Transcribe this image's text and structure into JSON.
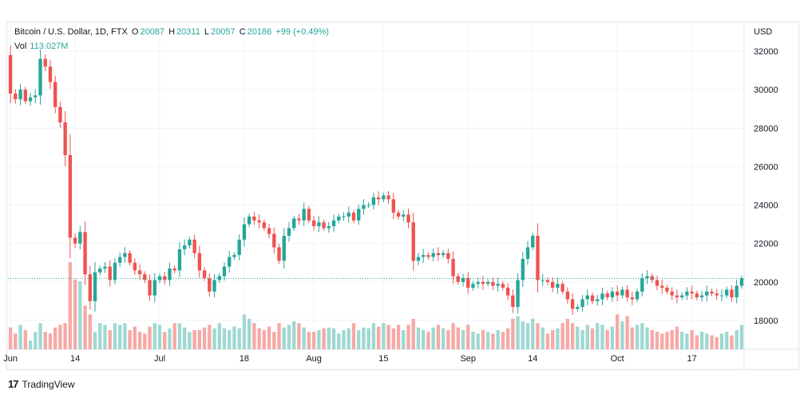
{
  "header": {
    "symbol": "Bitcoin / U.S. Dollar, 1D, FTX",
    "open_label": "O",
    "open": "20087",
    "high_label": "H",
    "high": "20311",
    "low_label": "L",
    "low": "20057",
    "close_label": "C",
    "close": "20186",
    "change": "+99 (+0.49%)",
    "vol_label": "Vol",
    "vol": "113.027M"
  },
  "currency": "USD",
  "brand": {
    "logo": "17",
    "name": "TradingView"
  },
  "colors": {
    "up": "#26a69a",
    "down": "#ef5350",
    "up_vol": "#9fd8d2",
    "down_vol": "#f6a9a6",
    "grid": "#f0f3fa",
    "axis_text": "#131722"
  },
  "chart_data": {
    "type": "candlestick",
    "title": "Bitcoin / U.S. Dollar, 1D, FTX",
    "ylabel": "USD",
    "ylim": [
      16500,
      33500
    ],
    "y_ticks": [
      18000,
      20000,
      22000,
      24000,
      26000,
      28000,
      30000,
      32000
    ],
    "x_ticks": [
      {
        "label": "Jun",
        "index": 0
      },
      {
        "label": "14",
        "index": 13
      },
      {
        "label": "Jul",
        "index": 30
      },
      {
        "label": "18",
        "index": 47
      },
      {
        "label": "Aug",
        "index": 61
      },
      {
        "label": "15",
        "index": 75
      },
      {
        "label": "Sep",
        "index": 92
      },
      {
        "label": "14",
        "index": 105
      },
      {
        "label": "Oct",
        "index": 122
      },
      {
        "label": "17",
        "index": 137
      }
    ],
    "last_price": 20186,
    "close": [
      29800,
      29500,
      30000,
      29400,
      29600,
      29700,
      31600,
      31200,
      30400,
      29100,
      28300,
      26600,
      22300,
      22000,
      22600,
      20400,
      19000,
      20500,
      20700,
      20800,
      20100,
      21000,
      21300,
      21500,
      21000,
      20600,
      20400,
      20100,
      19300,
      20100,
      20300,
      20100,
      20700,
      20600,
      21700,
      21900,
      22200,
      21500,
      20600,
      20200,
      19500,
      20100,
      20300,
      20800,
      21300,
      21400,
      22200,
      23000,
      23400,
      23200,
      23100,
      22800,
      22500,
      21800,
      21100,
      22400,
      22800,
      23300,
      23200,
      23800,
      23200,
      22900,
      23100,
      22800,
      22900,
      23200,
      23400,
      23400,
      23600,
      23200,
      23800,
      24000,
      24000,
      24400,
      24300,
      24500,
      24300,
      23600,
      23400,
      23500,
      23100,
      21100,
      21300,
      21400,
      21300,
      21500,
      21400,
      21500,
      21200,
      20300,
      20000,
      20200,
      19700,
      19900,
      20000,
      19900,
      20000,
      19800,
      19900,
      19700,
      19300,
      18700,
      20100,
      21200,
      21800,
      22400,
      20100,
      20100,
      20000,
      19700,
      19900,
      19500,
      19100,
      18600,
      18700,
      19100,
      19300,
      19000,
      19100,
      19400,
      19200,
      19500,
      19300,
      19600,
      19200,
      19100,
      19500,
      20200,
      20300,
      20100,
      19800,
      19700,
      19500,
      19300,
      19200,
      19300,
      19500,
      19400,
      19200,
      19300,
      19500,
      19400,
      19300,
      19300,
      19600,
      19200,
      19800,
      20186
    ],
    "volume": [
      0.25,
      0.18,
      0.28,
      0.22,
      0.1,
      0.2,
      0.3,
      0.2,
      0.18,
      0.25,
      0.28,
      0.3,
      1.0,
      0.8,
      0.78,
      0.5,
      0.4,
      0.2,
      0.3,
      0.28,
      0.22,
      0.3,
      0.28,
      0.3,
      0.22,
      0.26,
      0.2,
      0.18,
      0.26,
      0.3,
      0.28,
      0.2,
      0.24,
      0.3,
      0.3,
      0.25,
      0.2,
      0.22,
      0.22,
      0.25,
      0.28,
      0.24,
      0.3,
      0.24,
      0.22,
      0.26,
      0.24,
      0.4,
      0.35,
      0.3,
      0.24,
      0.22,
      0.26,
      0.2,
      0.3,
      0.25,
      0.28,
      0.32,
      0.3,
      0.25,
      0.2,
      0.2,
      0.22,
      0.24,
      0.25,
      0.24,
      0.18,
      0.22,
      0.24,
      0.3,
      0.22,
      0.25,
      0.24,
      0.3,
      0.26,
      0.3,
      0.28,
      0.24,
      0.28,
      0.22,
      0.28,
      0.35,
      0.25,
      0.22,
      0.2,
      0.25,
      0.28,
      0.24,
      0.22,
      0.3,
      0.25,
      0.22,
      0.28,
      0.2,
      0.18,
      0.22,
      0.2,
      0.18,
      0.22,
      0.2,
      0.24,
      0.35,
      0.38,
      0.32,
      0.3,
      0.35,
      0.3,
      0.25,
      0.18,
      0.22,
      0.24,
      0.3,
      0.35,
      0.3,
      0.26,
      0.22,
      0.28,
      0.24,
      0.3,
      0.28,
      0.22,
      0.26,
      0.4,
      0.32,
      0.38,
      0.25,
      0.28,
      0.3,
      0.25,
      0.22,
      0.2,
      0.18,
      0.2,
      0.22,
      0.26,
      0.2,
      0.18,
      0.22,
      0.16,
      0.2,
      0.18,
      0.16,
      0.14,
      0.18,
      0.2,
      0.16,
      0.22,
      0.28
    ]
  }
}
